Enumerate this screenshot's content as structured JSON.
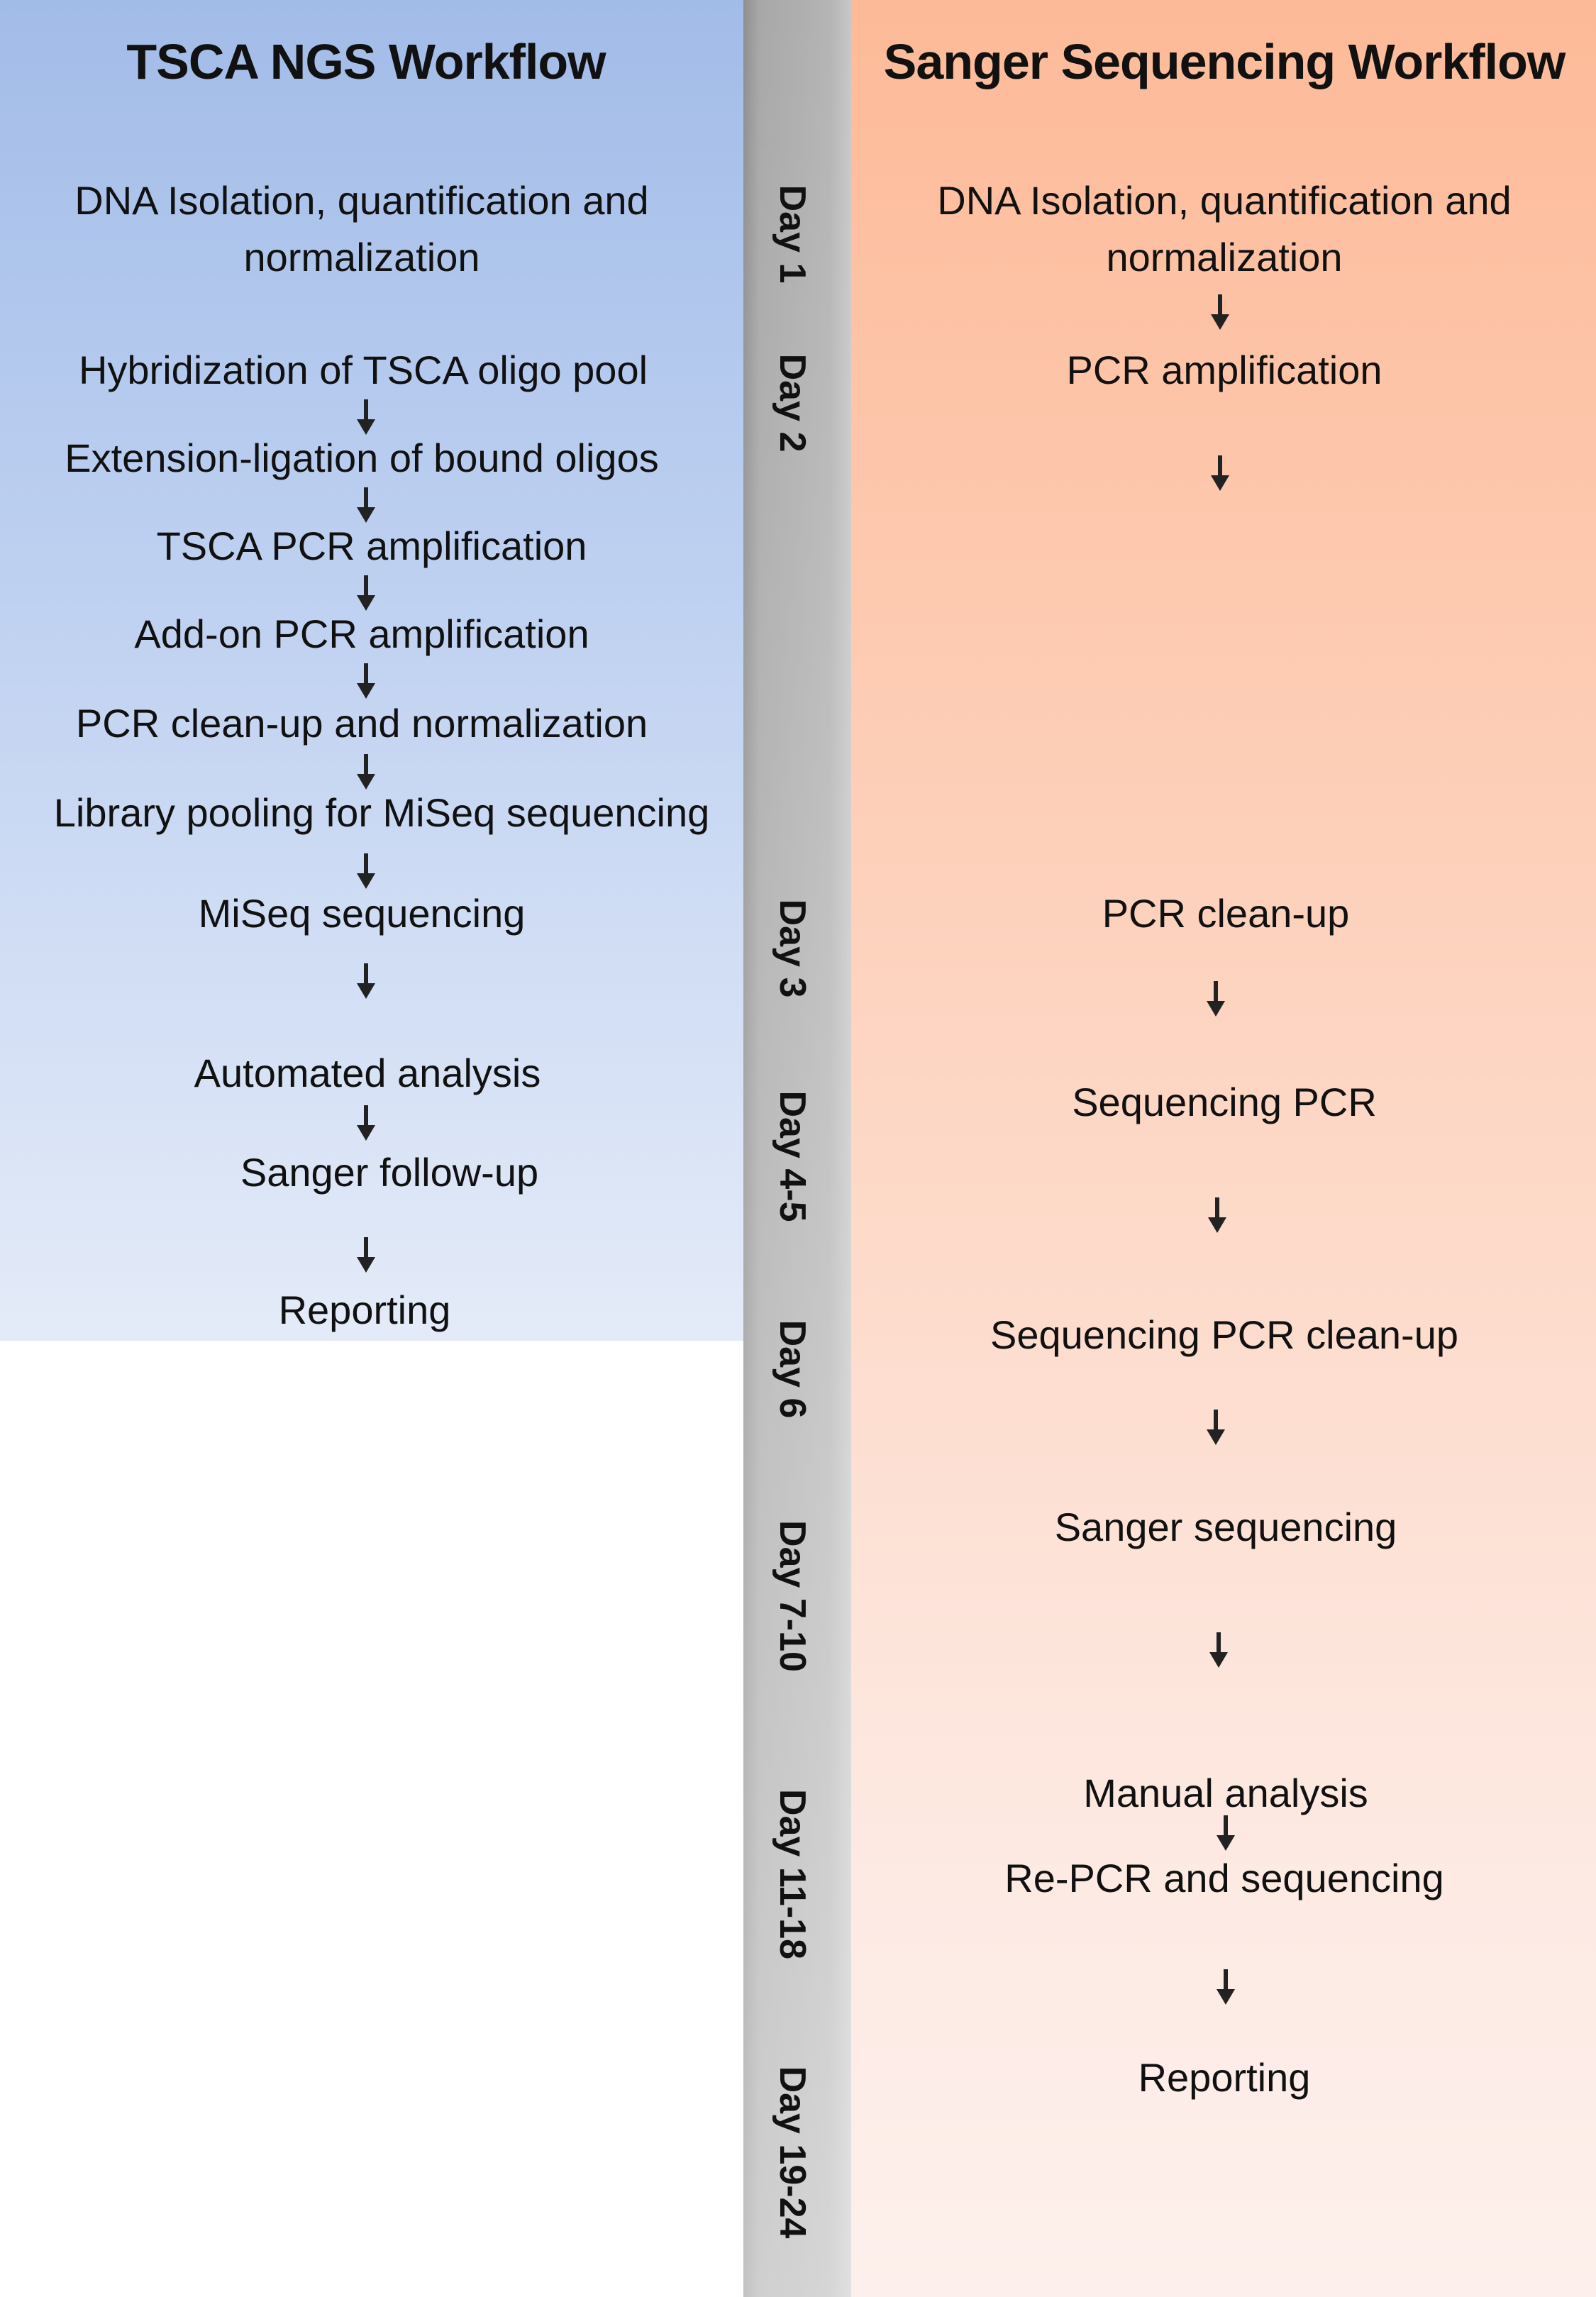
{
  "left": {
    "title": "TSCA NGS Workflow",
    "steps": [
      "DNA Isolation, quantification and normalization",
      "Hybridization of TSCA oligo pool",
      "Extension-ligation of bound oligos",
      "TSCA PCR amplification",
      "Add-on PCR amplification",
      "PCR clean-up and normalization",
      "Library pooling for MiSeq sequencing",
      "MiSeq sequencing",
      "Automated analysis",
      "Sanger follow-up",
      "Reporting"
    ],
    "color_top": "#a2bce8"
  },
  "right": {
    "title": "Sanger Sequencing Workflow",
    "steps": [
      "DNA Isolation, quantification and normalization",
      "PCR amplification",
      "PCR clean-up",
      "Sequencing PCR",
      "Sequencing PCR clean-up",
      "Sanger sequencing",
      "Manual analysis",
      "Re-PCR and sequencing",
      "Reporting"
    ],
    "color_top": "#fdba98"
  },
  "days": [
    "Day 1",
    "Day 2",
    "Day 3",
    "Day 4-5",
    "Day 6",
    "Day 7-10",
    "Day 11-18",
    "Day 19-24"
  ],
  "arrow_icon": "down-arrow"
}
